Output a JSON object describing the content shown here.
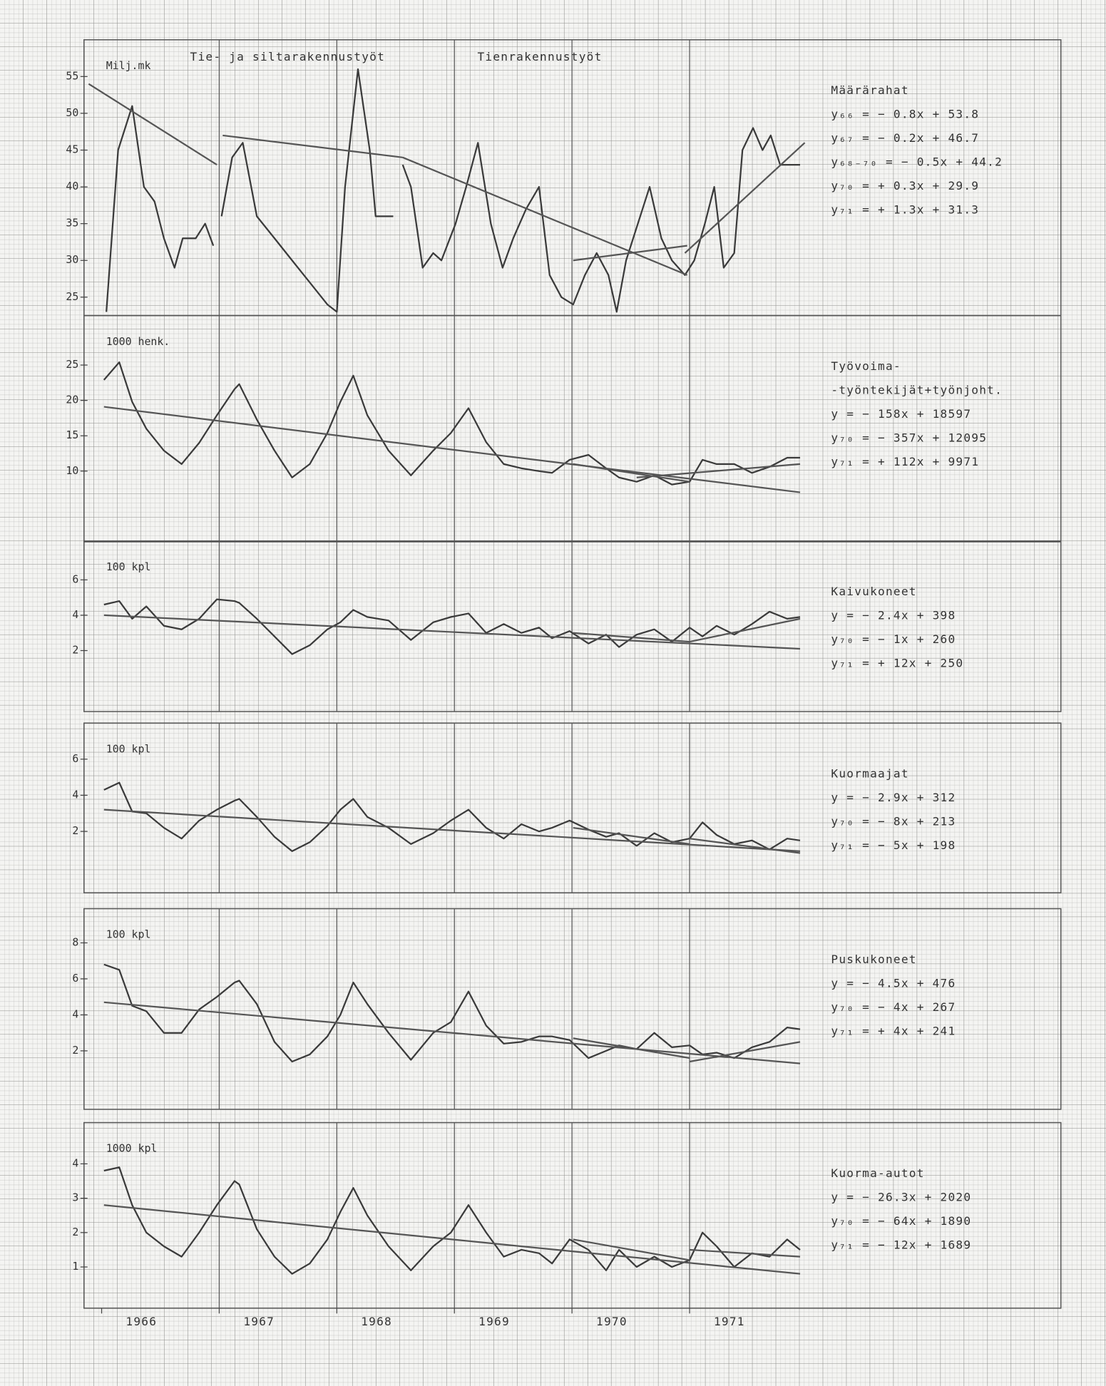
{
  "chart_data": [
    {
      "type": "line",
      "y_label": "Milj.mk",
      "section_labels": [
        "Tie- ja siltarakennustyöt",
        "Tienrakennustyöt"
      ],
      "xlim": [
        1965.85,
        1972
      ],
      "ylim": [
        22.5,
        60
      ],
      "yticks": [
        25,
        30,
        35,
        40,
        45,
        50,
        55
      ],
      "annotations": [
        "Määrärahat",
        "y₆₆ = − 0.8x + 53.8",
        "y₆₇ = − 0.2x + 46.7",
        "y₆₈₋₇₀ = − 0.5x + 44.2",
        "y₇₀ = + 0.3x + 29.9",
        "y₇₁ = + 1.3x + 31.3"
      ],
      "series": [
        {
          "color": "#3a3a3a",
          "x": [
            1966.04,
            1966.14,
            1966.26,
            1966.36,
            1966.45,
            1966.53,
            1966.62,
            1966.69,
            1966.8,
            1966.88,
            1966.95
          ],
          "values": [
            23,
            45,
            51,
            40,
            38,
            33,
            29,
            33,
            33,
            35,
            32
          ]
        },
        {
          "color": "#3a3a3a",
          "x": [
            1967.02,
            1967.11,
            1967.2,
            1967.32,
            1967.47,
            1967.62,
            1967.77,
            1967.92,
            1968.0,
            1968.07,
            1968.18,
            1968.28,
            1968.33,
            1968.48
          ],
          "values": [
            36,
            44,
            46,
            36,
            33,
            30,
            27,
            24,
            23,
            40,
            56,
            45,
            36,
            36
          ]
        },
        {
          "color": "#3a3a3a",
          "x": [
            1968.56,
            1968.63,
            1968.73,
            1968.82,
            1968.89,
            1969.01,
            1969.1,
            1969.2,
            1969.31,
            1969.41,
            1969.5,
            1969.61,
            1969.72,
            1969.81,
            1969.91,
            1970.01,
            1970.11,
            1970.21,
            1970.31,
            1970.38,
            1970.46,
            1970.56,
            1970.66,
            1970.76,
            1970.85,
            1970.96,
            1971.04,
            1971.13,
            1971.21,
            1971.29,
            1971.38,
            1971.45,
            1971.54,
            1971.62,
            1971.69,
            1971.77,
            1971.94
          ],
          "values": [
            43,
            40,
            29,
            31,
            30,
            35,
            40,
            46,
            35,
            29,
            33,
            37,
            40,
            28,
            25,
            24,
            28,
            31,
            28,
            23,
            30,
            35,
            40,
            33,
            30,
            28,
            30,
            35,
            40,
            29,
            31,
            45,
            48,
            45,
            47,
            43,
            43
          ]
        },
        {
          "color": "#555555",
          "x": [
            1965.89,
            1966.98
          ],
          "values": [
            54,
            43
          ]
        },
        {
          "color": "#555555",
          "x": [
            1967.03,
            1968.56
          ],
          "values": [
            47,
            44
          ]
        },
        {
          "color": "#555555",
          "x": [
            1968.56,
            1970.98
          ],
          "values": [
            44,
            28
          ]
        },
        {
          "color": "#555555",
          "x": [
            1970.01,
            1970.98
          ],
          "values": [
            30,
            32
          ]
        },
        {
          "color": "#555555",
          "x": [
            1970.96,
            1971.98
          ],
          "values": [
            31,
            46
          ]
        }
      ]
    },
    {
      "type": "line",
      "y_label": "1000 henk.",
      "xlim": [
        1965.85,
        1972
      ],
      "ylim": [
        0,
        32
      ],
      "yticks": [
        10,
        15,
        20,
        25
      ],
      "annotations": [
        "Työvoima-",
        "-työntekijät+työnjoht.",
        "y = − 158x + 18597",
        "y₇₀ = − 357x + 12095",
        "y₇₁ = + 112x + 9971"
      ],
      "series": [
        {
          "color": "#3a3a3a",
          "x": [
            1966.02,
            1966.15,
            1966.26,
            1966.38,
            1966.53,
            1966.68,
            1966.83,
            1966.98,
            1967.13,
            1967.17,
            1967.32,
            1967.47,
            1967.62,
            1967.77,
            1967.92,
            1968.03,
            1968.14,
            1968.26,
            1968.44,
            1968.63,
            1968.82,
            1968.97,
            1969.12,
            1969.27,
            1969.42,
            1969.57,
            1969.72,
            1969.83,
            1969.98,
            1970.14,
            1970.29,
            1970.4,
            1970.55,
            1970.7,
            1970.85,
            1971.0,
            1971.11,
            1971.23,
            1971.38,
            1971.53,
            1971.68,
            1971.83,
            1971.94
          ],
          "values": [
            22.9,
            25.4,
            19.8,
            16,
            12.9,
            11,
            14,
            17.9,
            21.6,
            22.3,
            17.3,
            12.9,
            9.1,
            11,
            15.4,
            19.8,
            23.5,
            17.9,
            12.9,
            9.4,
            12.9,
            15.4,
            18.9,
            14.1,
            11,
            10.4,
            10,
            9.75,
            11.6,
            12.3,
            10.4,
            9.1,
            8.5,
            9.4,
            8.1,
            8.5,
            11.6,
            11,
            11,
            9.75,
            10.6,
            11.9,
            11.9
          ]
        },
        {
          "color": "#555555",
          "x": [
            1966.02,
            1971.94
          ],
          "values": [
            19.1,
            7.0
          ]
        },
        {
          "color": "#555555",
          "x": [
            1970.01,
            1971.0
          ],
          "values": [
            11,
            8.5
          ]
        },
        {
          "color": "#555555",
          "x": [
            1970.55,
            1971.94
          ],
          "values": [
            9.1,
            11
          ]
        }
      ]
    },
    {
      "type": "line",
      "y_label": "100 kpl",
      "xlim": [
        1965.85,
        1972
      ],
      "ylim": [
        -1.45,
        8.2
      ],
      "yticks": [
        2,
        4,
        6
      ],
      "annotations": [
        "Kaivukoneet",
        "y = − 2.4x + 398",
        "y₇₀ = − 1x + 260",
        "y₇₁ = + 12x + 250"
      ],
      "series": [
        {
          "color": "#3a3a3a",
          "x": [
            1966.02,
            1966.15,
            1966.26,
            1966.38,
            1966.53,
            1966.68,
            1966.83,
            1966.98,
            1967.13,
            1967.17,
            1967.32,
            1967.47,
            1967.62,
            1967.77,
            1967.92,
            1968.03,
            1968.14,
            1968.26,
            1968.44,
            1968.63,
            1968.82,
            1968.97,
            1969.12,
            1969.27,
            1969.42,
            1969.57,
            1969.72,
            1969.83,
            1969.98,
            1970.14,
            1970.29,
            1970.4,
            1970.55,
            1970.7,
            1970.85,
            1971.0,
            1971.11,
            1971.23,
            1971.38,
            1971.53,
            1971.68,
            1971.83,
            1971.94
          ],
          "values": [
            4.6,
            4.8,
            3.8,
            4.5,
            3.4,
            3.2,
            3.8,
            4.9,
            4.8,
            4.7,
            3.8,
            2.8,
            1.8,
            2.3,
            3.2,
            3.6,
            4.3,
            3.9,
            3.7,
            2.6,
            3.6,
            3.9,
            4.1,
            3.0,
            3.5,
            3.0,
            3.3,
            2.7,
            3.1,
            2.4,
            2.9,
            2.2,
            2.9,
            3.2,
            2.5,
            3.3,
            2.8,
            3.4,
            2.9,
            3.5,
            4.2,
            3.8,
            3.9
          ]
        },
        {
          "color": "#555555",
          "x": [
            1966.02,
            1971.94
          ],
          "values": [
            4.0,
            2.1
          ]
        },
        {
          "color": "#555555",
          "x": [
            1970.01,
            1971.0
          ],
          "values": [
            3.0,
            2.5
          ]
        },
        {
          "color": "#555555",
          "x": [
            1971.0,
            1971.94
          ],
          "values": [
            2.5,
            3.8
          ]
        }
      ]
    },
    {
      "type": "line",
      "y_label": "100 kpl",
      "xlim": [
        1965.85,
        1972
      ],
      "ylim": [
        -1.4,
        8.0
      ],
      "yticks": [
        2,
        4,
        6
      ],
      "annotations": [
        "Kuormaajat",
        "y = − 2.9x + 312",
        "y₇₀ = − 8x + 213",
        "y₇₁ = − 5x + 198"
      ],
      "series": [
        {
          "color": "#3a3a3a",
          "x": [
            1966.02,
            1966.15,
            1966.26,
            1966.38,
            1966.53,
            1966.68,
            1966.83,
            1966.98,
            1967.13,
            1967.17,
            1967.32,
            1967.47,
            1967.62,
            1967.77,
            1967.92,
            1968.03,
            1968.14,
            1968.26,
            1968.44,
            1968.63,
            1968.82,
            1968.97,
            1969.12,
            1969.27,
            1969.42,
            1969.57,
            1969.72,
            1969.83,
            1969.98,
            1970.14,
            1970.29,
            1970.4,
            1970.55,
            1970.7,
            1970.85,
            1971.0,
            1971.11,
            1971.23,
            1971.38,
            1971.53,
            1971.68,
            1971.83,
            1971.94
          ],
          "values": [
            4.3,
            4.7,
            3.1,
            3.0,
            2.2,
            1.6,
            2.6,
            3.2,
            3.7,
            3.8,
            2.8,
            1.7,
            0.9,
            1.4,
            2.3,
            3.2,
            3.8,
            2.8,
            2.2,
            1.3,
            1.9,
            2.6,
            3.2,
            2.2,
            1.6,
            2.4,
            2.0,
            2.2,
            2.6,
            2.1,
            1.7,
            1.9,
            1.2,
            1.9,
            1.4,
            1.6,
            2.5,
            1.8,
            1.3,
            1.5,
            1.0,
            1.6,
            1.5
          ]
        },
        {
          "color": "#555555",
          "x": [
            1966.02,
            1971.94
          ],
          "values": [
            3.2,
            0.9
          ]
        },
        {
          "color": "#555555",
          "x": [
            1970.01,
            1971.0
          ],
          "values": [
            2.2,
            1.3
          ]
        },
        {
          "color": "#555555",
          "x": [
            1971.0,
            1971.94
          ],
          "values": [
            1.6,
            0.8
          ]
        }
      ]
    },
    {
      "type": "line",
      "y_label": "100 kpl",
      "xlim": [
        1965.85,
        1972
      ],
      "ylim": [
        -1.25,
        9.9
      ],
      "yticks": [
        2,
        4,
        6,
        8
      ],
      "annotations": [
        "Puskukoneet",
        "y = − 4.5x + 476",
        "y₇₀ = − 4x + 267",
        "y₇₁ = + 4x + 241"
      ],
      "series": [
        {
          "color": "#3a3a3a",
          "x": [
            1966.02,
            1966.15,
            1966.26,
            1966.38,
            1966.53,
            1966.68,
            1966.83,
            1966.98,
            1967.13,
            1967.17,
            1967.32,
            1967.47,
            1967.62,
            1967.77,
            1967.92,
            1968.03,
            1968.14,
            1968.26,
            1968.44,
            1968.63,
            1968.82,
            1968.97,
            1969.12,
            1969.27,
            1969.42,
            1969.57,
            1969.72,
            1969.83,
            1969.98,
            1970.14,
            1970.29,
            1970.4,
            1970.55,
            1970.7,
            1970.85,
            1971.0,
            1971.11,
            1971.23,
            1971.38,
            1971.53,
            1971.68,
            1971.83,
            1971.94
          ],
          "values": [
            6.8,
            6.5,
            4.5,
            4.2,
            3.0,
            3.0,
            4.3,
            5.0,
            5.8,
            5.9,
            4.6,
            2.5,
            1.4,
            1.8,
            2.8,
            4.0,
            5.8,
            4.6,
            3.0,
            1.5,
            3.0,
            3.6,
            5.3,
            3.4,
            2.4,
            2.5,
            2.8,
            2.8,
            2.6,
            1.6,
            2.0,
            2.3,
            2.1,
            3.0,
            2.2,
            2.3,
            1.8,
            1.9,
            1.6,
            2.2,
            2.5,
            3.3,
            3.2
          ]
        },
        {
          "color": "#555555",
          "x": [
            1966.02,
            1971.94
          ],
          "values": [
            4.7,
            1.3
          ]
        },
        {
          "color": "#555555",
          "x": [
            1970.01,
            1971.0
          ],
          "values": [
            2.7,
            1.6
          ]
        },
        {
          "color": "#555555",
          "x": [
            1971.0,
            1971.94
          ],
          "values": [
            1.4,
            2.5
          ]
        }
      ]
    },
    {
      "type": "line",
      "y_label": "1000 kpl",
      "xlim": [
        1965.85,
        1972
      ],
      "ylim": [
        -0.2,
        5.2
      ],
      "yticks": [
        1,
        2,
        3,
        4
      ],
      "xticks": [
        1966,
        1967,
        1968,
        1969,
        1970,
        1971
      ],
      "annotations": [
        "Kuorma-autot",
        "y = − 26.3x + 2020",
        "y₇₀ = − 64x + 1890",
        "y₇₁ = − 12x + 1689"
      ],
      "series": [
        {
          "color": "#3a3a3a",
          "x": [
            1966.02,
            1966.15,
            1966.26,
            1966.38,
            1966.53,
            1966.68,
            1966.83,
            1966.98,
            1967.13,
            1967.17,
            1967.32,
            1967.47,
            1967.62,
            1967.77,
            1967.92,
            1968.03,
            1968.14,
            1968.26,
            1968.44,
            1968.63,
            1968.82,
            1968.97,
            1969.12,
            1969.27,
            1969.42,
            1969.57,
            1969.72,
            1969.83,
            1969.98,
            1970.14,
            1970.29,
            1970.4,
            1970.55,
            1970.7,
            1970.85,
            1971.0,
            1971.11,
            1971.23,
            1971.38,
            1971.53,
            1971.68,
            1971.83,
            1971.94
          ],
          "values": [
            3.8,
            3.9,
            2.8,
            2.0,
            1.6,
            1.3,
            2.0,
            2.8,
            3.5,
            3.4,
            2.1,
            1.3,
            0.8,
            1.1,
            1.8,
            2.6,
            3.3,
            2.5,
            1.6,
            0.9,
            1.6,
            2.0,
            2.8,
            2.0,
            1.3,
            1.5,
            1.4,
            1.1,
            1.8,
            1.5,
            0.9,
            1.5,
            1.0,
            1.3,
            1.0,
            1.2,
            2.0,
            1.6,
            1.0,
            1.4,
            1.3,
            1.8,
            1.5
          ]
        },
        {
          "color": "#555555",
          "x": [
            1966.02,
            1971.94
          ],
          "values": [
            2.8,
            0.8
          ]
        },
        {
          "color": "#555555",
          "x": [
            1970.01,
            1971.0
          ],
          "values": [
            1.8,
            1.2
          ]
        },
        {
          "color": "#555555",
          "x": [
            1971.0,
            1971.94
          ],
          "values": [
            1.5,
            1.3
          ]
        }
      ]
    }
  ]
}
